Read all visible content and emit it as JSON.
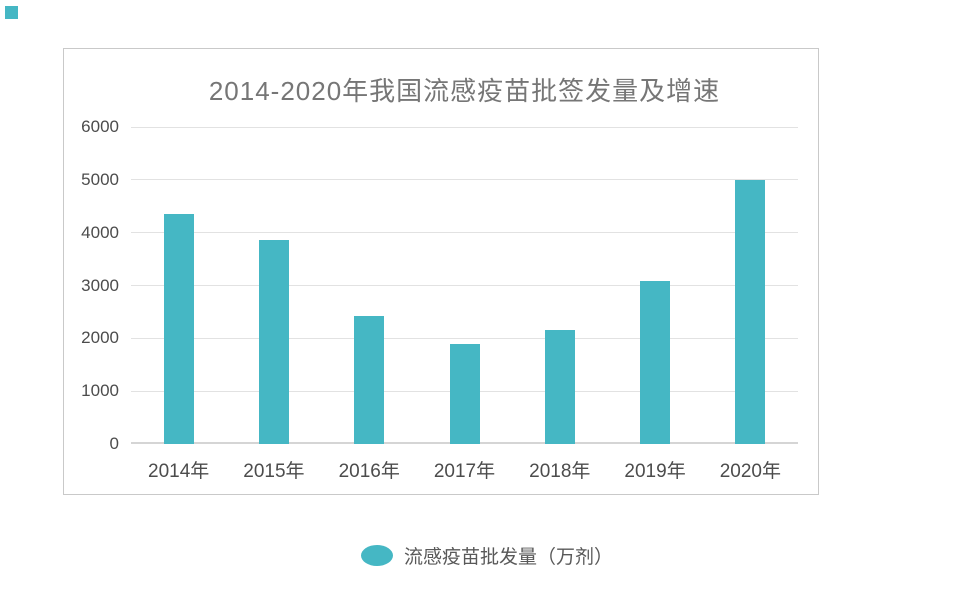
{
  "page": {
    "background": "#ffffff"
  },
  "artifact": {
    "corner_mark_color": "#45b7c4"
  },
  "chart": {
    "colors": {
      "bar": "#45b7c4",
      "title_text": "#767676",
      "axis_text": "#4c4c4c",
      "gridline": "#e2e2e2",
      "baseline": "#d5d5d5",
      "panel_border": "#c9c9c9",
      "legend_text": "#595959"
    },
    "legend": {
      "label": "流感疫苗批发量（万剂）",
      "marker_color": "#45b7c4"
    }
  },
  "chart_data": {
    "type": "bar",
    "title": "2014-2020年我国流感疫苗批签发量及增速",
    "categories": [
      "2014年",
      "2015年",
      "2016年",
      "2017年",
      "2018年",
      "2019年",
      "2020年"
    ],
    "series": [
      {
        "name": "流感疫苗批发量（万剂）",
        "values": [
          4350,
          3860,
          2420,
          1900,
          2160,
          3090,
          5000
        ]
      }
    ],
    "xlabel": "",
    "ylabel": "",
    "ylim": [
      0,
      6000
    ],
    "yticks": [
      0,
      1000,
      2000,
      3000,
      4000,
      5000,
      6000
    ],
    "grid": true,
    "legend_position": "bottom"
  }
}
